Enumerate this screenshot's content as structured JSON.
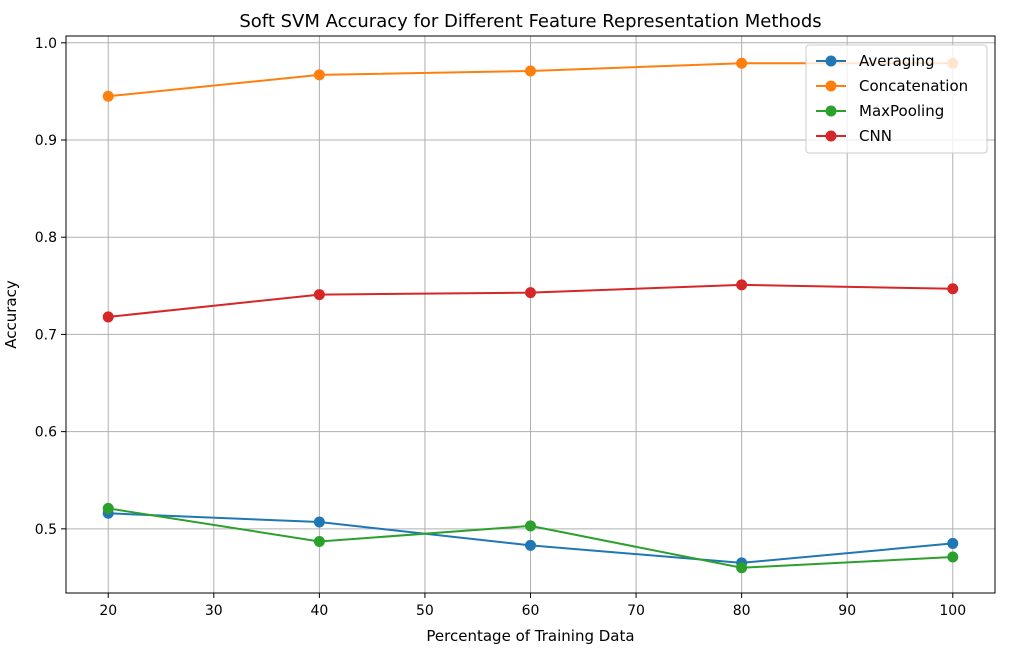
{
  "chart_data": {
    "type": "line",
    "title": "Soft SVM Accuracy for Different Feature Representation Methods",
    "xlabel": "Percentage of Training Data",
    "ylabel": "Accuracy",
    "x": [
      20,
      40,
      60,
      80,
      100
    ],
    "xlim": [
      16,
      104
    ],
    "ylim": [
      0.434,
      1.007
    ],
    "xticks": [
      20,
      30,
      40,
      50,
      60,
      70,
      80,
      90,
      100
    ],
    "yticks": [
      0.5,
      0.6,
      0.7,
      0.8,
      0.9,
      1.0
    ],
    "xtick_labels": [
      "20",
      "30",
      "40",
      "50",
      "60",
      "70",
      "80",
      "90",
      "100"
    ],
    "ytick_labels": [
      "0.5",
      "0.6",
      "0.7",
      "0.8",
      "0.9",
      "1.0"
    ],
    "grid": true,
    "legend_position": "top-right",
    "marker": "circle",
    "series": [
      {
        "name": "Averaging",
        "color": "#1f77b4",
        "values": [
          0.516,
          0.507,
          0.483,
          0.465,
          0.485
        ]
      },
      {
        "name": "Concatenation",
        "color": "#ff7f0e",
        "values": [
          0.945,
          0.967,
          0.971,
          0.979,
          0.979
        ]
      },
      {
        "name": "MaxPooling",
        "color": "#2ca02c",
        "values": [
          0.521,
          0.487,
          0.503,
          0.46,
          0.471
        ]
      },
      {
        "name": "CNN",
        "color": "#d62728",
        "values": [
          0.718,
          0.741,
          0.743,
          0.751,
          0.747
        ]
      }
    ]
  }
}
